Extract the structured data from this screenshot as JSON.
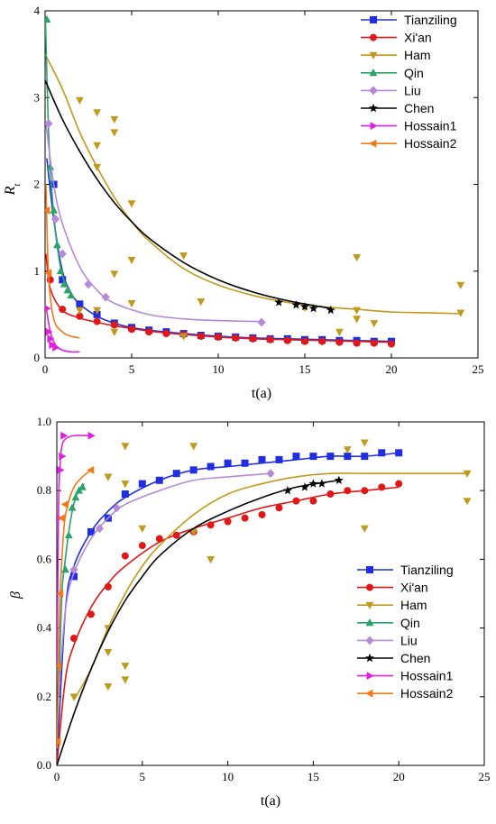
{
  "chart_data": [
    {
      "type": "scatter",
      "xlabel": "t(a)",
      "ylabel": "R",
      "ylabel_sub": "t",
      "xlim": [
        0,
        25
      ],
      "ylim": [
        0,
        4
      ],
      "xticks": [
        0,
        5,
        10,
        15,
        20,
        25
      ],
      "yticks": [
        0,
        1,
        2,
        3,
        4
      ],
      "legend_position": "top-right",
      "series": [
        {
          "name": "Tianziling",
          "color": "#1f2fe0",
          "marker": "square",
          "x": [
            0.5,
            1,
            2,
            3,
            4,
            5,
            6,
            7,
            8,
            9,
            10,
            11,
            12,
            13,
            14,
            15,
            16,
            17,
            18,
            19,
            20
          ],
          "y": [
            2.0,
            0.9,
            0.62,
            0.5,
            0.4,
            0.35,
            0.32,
            0.3,
            0.28,
            0.26,
            0.25,
            0.24,
            0.23,
            0.22,
            0.22,
            0.21,
            0.21,
            0.2,
            0.2,
            0.19,
            0.19
          ],
          "curve_x": [
            0.1,
            0.5,
            1,
            1.5,
            2,
            3,
            4,
            5,
            6,
            8,
            10,
            12,
            14,
            16,
            18,
            20
          ],
          "curve_y": [
            2.3,
            1.6,
            1.0,
            0.75,
            0.62,
            0.48,
            0.4,
            0.35,
            0.32,
            0.28,
            0.25,
            0.23,
            0.22,
            0.21,
            0.2,
            0.19
          ]
        },
        {
          "name": "Xi'an",
          "color": "#e01818",
          "marker": "circle",
          "x": [
            0.3,
            1,
            2,
            3,
            4,
            5,
            6,
            7,
            8,
            9,
            10,
            11,
            12,
            13,
            14,
            15,
            16,
            17,
            18,
            19,
            20
          ],
          "y": [
            0.9,
            0.56,
            0.48,
            0.42,
            0.38,
            0.33,
            0.3,
            0.28,
            0.27,
            0.25,
            0.24,
            0.23,
            0.22,
            0.21,
            0.2,
            0.19,
            0.19,
            0.18,
            0.17,
            0.17,
            0.16
          ],
          "curve_x": [
            0.05,
            0.3,
            1,
            2,
            3,
            4,
            6,
            8,
            10,
            12,
            14,
            16,
            18,
            20
          ],
          "curve_y": [
            1.2,
            0.8,
            0.55,
            0.46,
            0.41,
            0.37,
            0.31,
            0.27,
            0.24,
            0.22,
            0.21,
            0.2,
            0.19,
            0.18
          ]
        },
        {
          "name": "Ham",
          "color": "#c09a1a",
          "marker": "triangle-down",
          "x": [
            2,
            3,
            3,
            4,
            4,
            3,
            5,
            5,
            4,
            2,
            3,
            4,
            5,
            8,
            9,
            8,
            15,
            17,
            18,
            18,
            18,
            19,
            24,
            24
          ],
          "y": [
            2.97,
            2.83,
            2.45,
            2.75,
            2.6,
            2.2,
            1.78,
            1.13,
            0.97,
            0.55,
            0.55,
            0.3,
            0.63,
            1.18,
            0.65,
            0.25,
            0.58,
            0.3,
            1.16,
            0.55,
            0.45,
            0.4,
            0.84,
            0.52
          ],
          "curve_x": [
            0,
            1,
            2,
            3,
            4,
            5,
            6,
            8,
            10,
            12,
            14,
            16,
            18,
            20,
            22,
            24
          ],
          "curve_y": [
            3.5,
            3.1,
            2.6,
            2.2,
            1.85,
            1.57,
            1.35,
            1.03,
            0.84,
            0.72,
            0.64,
            0.59,
            0.56,
            0.53,
            0.52,
            0.51
          ]
        },
        {
          "name": "Qin",
          "color": "#2aa36a",
          "marker": "triangle-up",
          "x": [
            0.1,
            0.3,
            0.5,
            0.7,
            0.9,
            1.1,
            1.3,
            1.5
          ],
          "y": [
            3.9,
            2.2,
            1.7,
            1.3,
            1.0,
            0.85,
            0.78,
            0.72
          ],
          "curve_x": [
            0.02,
            0.2,
            0.4,
            0.6,
            0.8,
            1.0,
            1.2,
            1.5
          ],
          "curve_y": [
            3.9,
            2.6,
            1.9,
            1.45,
            1.15,
            0.95,
            0.85,
            0.75
          ]
        },
        {
          "name": "Liu",
          "color": "#b48ad8",
          "marker": "diamond",
          "x": [
            0.2,
            0.6,
            1,
            2.5,
            3.5,
            12.5
          ],
          "y": [
            2.7,
            1.6,
            1.2,
            0.85,
            0.7,
            0.41
          ],
          "curve_x": [
            0.05,
            0.5,
            1,
            2,
            3,
            4,
            6,
            8,
            10,
            12.5
          ],
          "curve_y": [
            2.7,
            2.0,
            1.55,
            1.05,
            0.78,
            0.63,
            0.5,
            0.45,
            0.43,
            0.42
          ]
        },
        {
          "name": "Chen",
          "color": "#000000",
          "marker": "star",
          "x": [
            13.5,
            14.5,
            15,
            15.5,
            16.5
          ],
          "y": [
            0.64,
            0.61,
            0.59,
            0.57,
            0.55
          ],
          "curve_x": [
            0,
            1,
            2,
            3,
            4,
            5,
            6,
            8,
            10,
            12,
            14,
            16.5
          ],
          "curve_y": [
            3.2,
            2.75,
            2.38,
            2.06,
            1.79,
            1.57,
            1.38,
            1.1,
            0.9,
            0.76,
            0.66,
            0.57
          ]
        },
        {
          "name": "Hossain1",
          "color": "#e020e0",
          "marker": "triangle-right",
          "x": [
            0.1,
            0.2,
            0.3,
            0.4,
            0.6
          ],
          "y": [
            0.57,
            0.3,
            0.22,
            0.15,
            0.12
          ],
          "curve_x": [
            0.05,
            0.3,
            0.6,
            1,
            1.5,
            2
          ],
          "curve_y": [
            0.6,
            0.3,
            0.15,
            0.09,
            0.07,
            0.07
          ]
        },
        {
          "name": "Hossain2",
          "color": "#f07a18",
          "marker": "triangle-left",
          "x": [
            0.1,
            0.2
          ],
          "y": [
            1.7,
            0.98
          ],
          "curve_x": [
            0.05,
            0.2,
            0.5,
            1,
            1.5,
            2
          ],
          "curve_y": [
            2.0,
            0.95,
            0.45,
            0.3,
            0.25,
            0.23
          ]
        }
      ]
    },
    {
      "type": "scatter",
      "xlabel": "t(a)",
      "ylabel": "β",
      "xlim": [
        0,
        25
      ],
      "ylim": [
        0,
        1.0
      ],
      "xticks": [
        0,
        5,
        10,
        15,
        20,
        25
      ],
      "yticks": [
        0.0,
        0.2,
        0.4,
        0.6,
        0.8,
        1.0
      ],
      "yticklabels": [
        "0.0",
        "0.2",
        "0.4",
        "0.6",
        "0.8",
        "1.0"
      ],
      "legend_position": "bottom-right",
      "series": [
        {
          "name": "Tianziling",
          "color": "#1f2fe0",
          "marker": "square",
          "x": [
            1,
            2,
            3,
            4,
            5,
            6,
            7,
            8,
            9,
            10,
            11,
            12,
            13,
            14,
            15,
            16,
            17,
            18,
            19,
            20
          ],
          "y": [
            0.55,
            0.68,
            0.72,
            0.79,
            0.82,
            0.83,
            0.85,
            0.86,
            0.87,
            0.88,
            0.88,
            0.89,
            0.89,
            0.9,
            0.9,
            0.9,
            0.9,
            0.9,
            0.91,
            0.91
          ],
          "curve_x": [
            0,
            0.5,
            1,
            2,
            3,
            4,
            6,
            8,
            10,
            12,
            14,
            16,
            18,
            20
          ],
          "curve_y": [
            0.0,
            0.45,
            0.58,
            0.68,
            0.74,
            0.78,
            0.83,
            0.86,
            0.87,
            0.88,
            0.89,
            0.9,
            0.9,
            0.91
          ]
        },
        {
          "name": "Xi'an",
          "color": "#e01818",
          "marker": "circle",
          "x": [
            1,
            2,
            3,
            4,
            5,
            6,
            7,
            8,
            9,
            10,
            11,
            12,
            13,
            14,
            15,
            16,
            17,
            18,
            19,
            20
          ],
          "y": [
            0.37,
            0.44,
            0.52,
            0.61,
            0.64,
            0.66,
            0.67,
            0.68,
            0.7,
            0.71,
            0.72,
            0.73,
            0.75,
            0.77,
            0.77,
            0.79,
            0.8,
            0.8,
            0.81,
            0.82
          ],
          "curve_x": [
            0,
            0.5,
            1,
            2,
            3,
            4,
            6,
            8,
            10,
            12,
            14,
            16,
            18,
            20
          ],
          "curve_y": [
            0.0,
            0.25,
            0.35,
            0.46,
            0.53,
            0.58,
            0.65,
            0.69,
            0.72,
            0.75,
            0.77,
            0.79,
            0.8,
            0.81
          ]
        },
        {
          "name": "Ham",
          "color": "#c09a1a",
          "marker": "triangle-down",
          "x": [
            1,
            3,
            3,
            3,
            4,
            4,
            3,
            4,
            5,
            4,
            8,
            9,
            8,
            17,
            18,
            18,
            24,
            24,
            3
          ],
          "y": [
            0.2,
            0.23,
            0.33,
            0.4,
            0.29,
            0.25,
            0.84,
            0.93,
            0.69,
            0.82,
            0.93,
            0.6,
            0.68,
            0.92,
            0.94,
            0.69,
            0.85,
            0.77,
            0.84
          ],
          "curve_x": [
            1,
            2,
            3,
            4,
            5,
            6,
            8,
            10,
            12,
            14,
            16,
            18,
            20,
            22,
            24
          ],
          "curve_y": [
            0.19,
            0.28,
            0.4,
            0.5,
            0.58,
            0.64,
            0.73,
            0.79,
            0.82,
            0.84,
            0.85,
            0.85,
            0.85,
            0.85,
            0.85
          ]
        },
        {
          "name": "Qin",
          "color": "#2aa36a",
          "marker": "triangle-up",
          "x": [
            0.5,
            0.7,
            0.9,
            1.1,
            1.3,
            1.5
          ],
          "y": [
            0.57,
            0.67,
            0.75,
            0.78,
            0.8,
            0.81
          ],
          "curve_x": [
            0.1,
            0.3,
            0.5,
            0.7,
            0.9,
            1.1,
            1.3,
            1.6
          ],
          "curve_y": [
            0.2,
            0.5,
            0.6,
            0.68,
            0.74,
            0.78,
            0.8,
            0.82
          ]
        },
        {
          "name": "Liu",
          "color": "#b48ad8",
          "marker": "diamond",
          "x": [
            1,
            2.5,
            3.5,
            12.5
          ],
          "y": [
            0.57,
            0.69,
            0.75,
            0.85
          ],
          "curve_x": [
            0.1,
            0.5,
            1,
            2,
            3,
            4,
            6,
            8,
            10,
            12.5
          ],
          "curve_y": [
            0.2,
            0.45,
            0.56,
            0.66,
            0.72,
            0.76,
            0.8,
            0.83,
            0.84,
            0.85
          ]
        },
        {
          "name": "Chen",
          "color": "#000000",
          "marker": "star",
          "x": [
            13.5,
            14.5,
            15,
            15.5,
            16.5
          ],
          "y": [
            0.8,
            0.81,
            0.82,
            0.82,
            0.83
          ],
          "curve_x": [
            0,
            1,
            2,
            3,
            4,
            5,
            6,
            8,
            10,
            12,
            14,
            16.5
          ],
          "curve_y": [
            0.0,
            0.15,
            0.28,
            0.39,
            0.48,
            0.55,
            0.61,
            0.69,
            0.74,
            0.78,
            0.81,
            0.83
          ]
        },
        {
          "name": "Hossain1",
          "color": "#e020e0",
          "marker": "triangle-right",
          "x": [
            0.1,
            0.2,
            0.3,
            0.4,
            2
          ],
          "y": [
            0.72,
            0.86,
            0.9,
            0.96,
            0.96
          ],
          "curve_x": [
            0.02,
            0.1,
            0.2,
            0.3,
            0.5,
            1,
            2
          ],
          "curve_y": [
            0.3,
            0.75,
            0.88,
            0.93,
            0.95,
            0.96,
            0.96
          ]
        },
        {
          "name": "Hossain2",
          "color": "#f07a18",
          "marker": "triangle-left",
          "x": [
            0.05,
            0.1,
            0.2,
            0.3,
            0.5,
            2
          ],
          "y": [
            0.07,
            0.29,
            0.5,
            0.72,
            0.76,
            0.86
          ],
          "curve_x": [
            0.02,
            0.1,
            0.2,
            0.4,
            0.6,
            1,
            1.5,
            2
          ],
          "curve_y": [
            0.05,
            0.3,
            0.5,
            0.68,
            0.75,
            0.81,
            0.84,
            0.86
          ]
        }
      ]
    }
  ]
}
